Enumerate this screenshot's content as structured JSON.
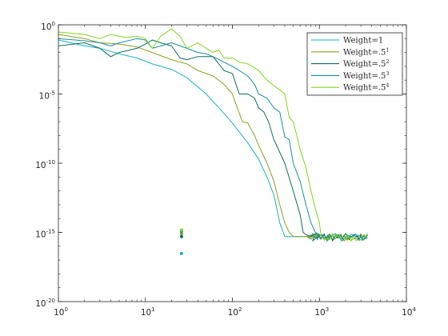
{
  "chart_data": {
    "type": "line",
    "title": "",
    "xlabel": "",
    "ylabel": "",
    "xscale": "log",
    "yscale": "log",
    "xlim": [
      1,
      10000
    ],
    "ylim": [
      1e-20,
      1
    ],
    "grid": false,
    "legend_position": "top-right",
    "x_ticks": [
      {
        "base": "10",
        "exp": "0",
        "value": 1
      },
      {
        "base": "10",
        "exp": "1",
        "value": 10
      },
      {
        "base": "10",
        "exp": "2",
        "value": 100
      },
      {
        "base": "10",
        "exp": "3",
        "value": 1000
      },
      {
        "base": "10",
        "exp": "4",
        "value": 10000
      }
    ],
    "y_ticks": [
      {
        "base": "10",
        "exp": "0",
        "value": 1
      },
      {
        "base": "10",
        "exp": "-5",
        "value": 1e-05
      },
      {
        "base": "10",
        "exp": "-10",
        "value": 1e-10
      },
      {
        "base": "10",
        "exp": "-15",
        "value": 1e-15
      },
      {
        "base": "10",
        "exp": "-20",
        "value": 1e-20
      }
    ],
    "series": [
      {
        "name": "Weight=1",
        "label_base": "Weight=1",
        "label_sup": "",
        "color": "#17b1c9",
        "points": [
          [
            1,
            0.08
          ],
          [
            2,
            0.03
          ],
          [
            3,
            0.02
          ],
          [
            5,
            0.008
          ],
          [
            8,
            0.004
          ],
          [
            12,
            0.0015
          ],
          [
            20,
            0.0006
          ],
          [
            30,
            0.00015
          ],
          [
            50,
            1e-05
          ],
          [
            70,
            1e-06
          ],
          [
            100,
            8e-08
          ],
          [
            150,
            3e-09
          ],
          [
            200,
            2e-10
          ],
          [
            250,
            1e-11
          ],
          [
            300,
            5e-13
          ],
          [
            350,
            5e-15
          ],
          [
            400,
            5e-16
          ],
          [
            500,
            5e-16
          ],
          [
            700,
            5e-16
          ],
          [
            900,
            8e-16
          ],
          [
            1000,
            6e-16
          ]
        ],
        "isolated_points": [
          [
            26,
            3e-17
          ]
        ],
        "noise_start_x": 700
      },
      {
        "name": "Weight=.5^1",
        "label_base": "Weight=.5",
        "label_sup": "1",
        "color": "#8e9f21",
        "points": [
          [
            1,
            0.2
          ],
          [
            2,
            0.1
          ],
          [
            3,
            0.05
          ],
          [
            5,
            0.04
          ],
          [
            8,
            0.025
          ],
          [
            12,
            0.01
          ],
          [
            20,
            0.003
          ],
          [
            30,
            0.0015
          ],
          [
            40,
            0.0005
          ],
          [
            60,
            0.0002
          ],
          [
            80,
            5e-05
          ],
          [
            100,
            1e-05
          ],
          [
            130,
            1e-07
          ],
          [
            150,
            8e-08
          ],
          [
            180,
            1e-08
          ],
          [
            200,
            2e-09
          ],
          [
            250,
            1e-10
          ],
          [
            300,
            5e-12
          ],
          [
            350,
            1e-13
          ],
          [
            400,
            5e-15
          ],
          [
            450,
            1e-15
          ],
          [
            500,
            5e-16
          ],
          [
            700,
            5e-16
          ],
          [
            900,
            8e-16
          ],
          [
            1000,
            6e-16
          ]
        ],
        "isolated_points": [
          [
            26,
            8e-16
          ]
        ],
        "noise_start_x": 700
      },
      {
        "name": "Weight=.5^2",
        "label_base": "Weight=.5",
        "label_sup": "2",
        "color": "#0f6e5a",
        "points": [
          [
            1,
            0.03
          ],
          [
            2,
            0.05
          ],
          [
            3,
            0.02
          ],
          [
            4,
            0.005
          ],
          [
            5,
            0.01
          ],
          [
            8,
            0.02
          ],
          [
            10,
            0.04
          ],
          [
            12,
            0.08
          ],
          [
            15,
            0.05
          ],
          [
            20,
            0.03
          ],
          [
            25,
            0.004
          ],
          [
            30,
            0.003
          ],
          [
            40,
            0.005
          ],
          [
            50,
            0.005
          ],
          [
            60,
            0.005
          ],
          [
            80,
            0.0005
          ],
          [
            100,
            0.0003
          ],
          [
            120,
            1e-05
          ],
          [
            150,
            1e-05
          ],
          [
            180,
            5e-06
          ],
          [
            200,
            1e-06
          ],
          [
            230,
            5e-07
          ],
          [
            260,
            1e-07
          ],
          [
            300,
            5e-09
          ],
          [
            400,
            1e-10
          ],
          [
            500,
            1e-12
          ],
          [
            600,
            2e-14
          ],
          [
            650,
            1e-15
          ],
          [
            700,
            7e-16
          ],
          [
            800,
            5e-16
          ],
          [
            900,
            8e-16
          ],
          [
            1000,
            6e-16
          ]
        ],
        "isolated_points": [
          [
            26,
            5e-16
          ]
        ],
        "noise_start_x": 800
      },
      {
        "name": "Weight=.5^3",
        "label_base": "Weight=.5",
        "label_sup": "3",
        "color": "#1a8da6",
        "points": [
          [
            1,
            0.1
          ],
          [
            2,
            0.07
          ],
          [
            3,
            0.05
          ],
          [
            4,
            0.03
          ],
          [
            5,
            0.05
          ],
          [
            8,
            0.1
          ],
          [
            10,
            0.08
          ],
          [
            12,
            0.02
          ],
          [
            15,
            0.03
          ],
          [
            20,
            0.05
          ],
          [
            25,
            0.03
          ],
          [
            30,
            0.02
          ],
          [
            40,
            0.01
          ],
          [
            50,
            0.008
          ],
          [
            60,
            0.005
          ],
          [
            80,
            0.002
          ],
          [
            100,
            0.001
          ],
          [
            120,
            0.0005
          ],
          [
            150,
            0.0002
          ],
          [
            180,
            5e-05
          ],
          [
            200,
            1e-05
          ],
          [
            250,
            5e-06
          ],
          [
            300,
            1e-06
          ],
          [
            350,
            5e-07
          ],
          [
            400,
            8e-09
          ],
          [
            450,
            5e-09
          ],
          [
            500,
            1e-10
          ],
          [
            600,
            5e-12
          ],
          [
            700,
            1e-13
          ],
          [
            800,
            5e-15
          ],
          [
            900,
            1e-15
          ],
          [
            1000,
            7e-16
          ]
        ],
        "isolated_points": [
          [
            26,
            1.2e-15
          ]
        ],
        "noise_start_x": 900
      },
      {
        "name": "Weight=.5^4",
        "label_base": "Weight=.5",
        "label_sup": "4",
        "color": "#7fd81a",
        "points": [
          [
            1,
            0.3
          ],
          [
            2,
            0.2
          ],
          [
            3,
            0.1
          ],
          [
            4,
            0.2
          ],
          [
            5,
            0.15
          ],
          [
            6,
            0.12
          ],
          [
            8,
            0.15
          ],
          [
            10,
            0.1
          ],
          [
            12,
            0.02
          ],
          [
            15,
            0.15
          ],
          [
            20,
            0.5
          ],
          [
            25,
            0.15
          ],
          [
            30,
            0.02
          ],
          [
            40,
            0.05
          ],
          [
            50,
            0.02
          ],
          [
            60,
            0.01
          ],
          [
            70,
            0.015
          ],
          [
            80,
            0.004
          ],
          [
            100,
            0.004
          ],
          [
            120,
            0.002
          ],
          [
            150,
            0.0015
          ],
          [
            180,
            0.0008
          ],
          [
            200,
            0.0005
          ],
          [
            250,
            0.0001
          ],
          [
            300,
            4e-05
          ],
          [
            350,
            2e-05
          ],
          [
            400,
            1e-05
          ],
          [
            450,
            2e-07
          ],
          [
            500,
            1e-07
          ],
          [
            550,
            1e-08
          ],
          [
            600,
            1e-09
          ],
          [
            700,
            5e-11
          ],
          [
            800,
            1e-12
          ],
          [
            900,
            5e-14
          ],
          [
            1000,
            5e-15
          ]
        ],
        "isolated_points": [
          [
            26,
            1.5e-15
          ]
        ],
        "noise_start_x": 1000
      }
    ]
  }
}
